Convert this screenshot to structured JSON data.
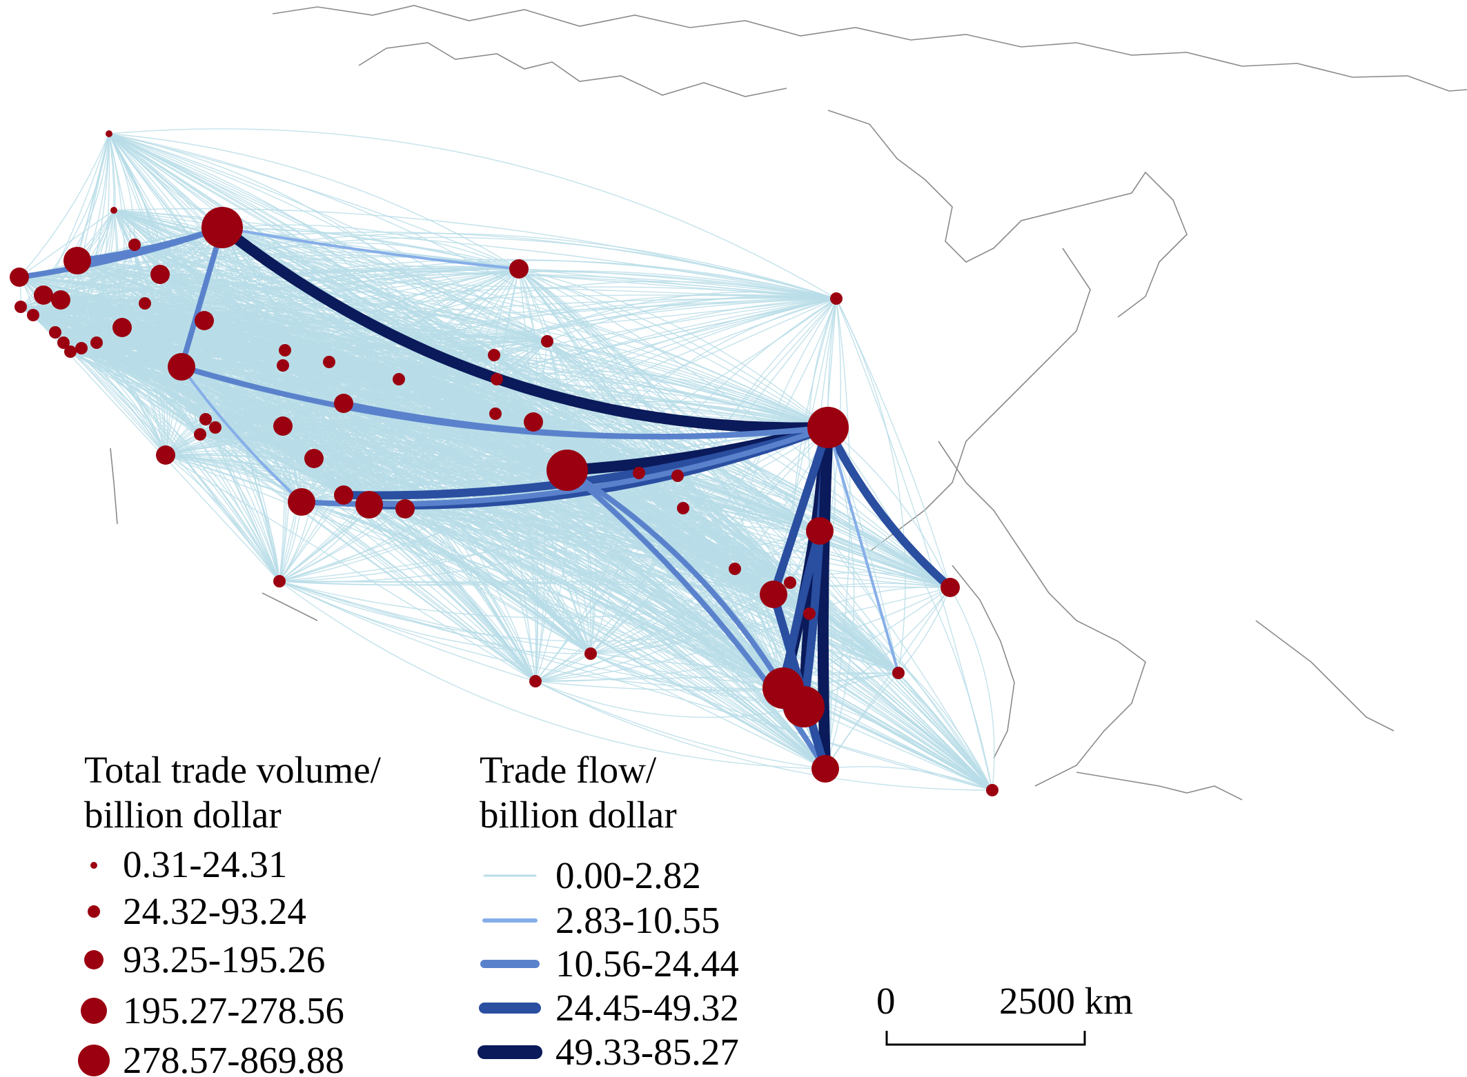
{
  "legend_nodes": {
    "title_line1": "Total trade volume/",
    "title_line2": "billion dollar",
    "classes": [
      "0.31-24.31",
      "24.32-93.24",
      "93.25-195.26",
      "195.27-278.56",
      "278.57-869.88"
    ],
    "color": "#9b0010"
  },
  "legend_flows": {
    "title_line1": "Trade flow/",
    "title_line2": "billion dollar",
    "classes": [
      "0.00-2.82",
      "2.83-10.55",
      "10.56-24.44",
      "24.45-49.32",
      "49.33-85.27"
    ],
    "colors": [
      "#b9dde8",
      "#86aee8",
      "#5a82cc",
      "#2a4ea0",
      "#0a1a5a"
    ]
  },
  "scale_bar": {
    "start_label": "0",
    "end_label": "2500 km"
  },
  "colors": {
    "flow_fill": "#bfdfe8",
    "node": "#9b0010",
    "coastline": "#8a8a8a"
  }
}
